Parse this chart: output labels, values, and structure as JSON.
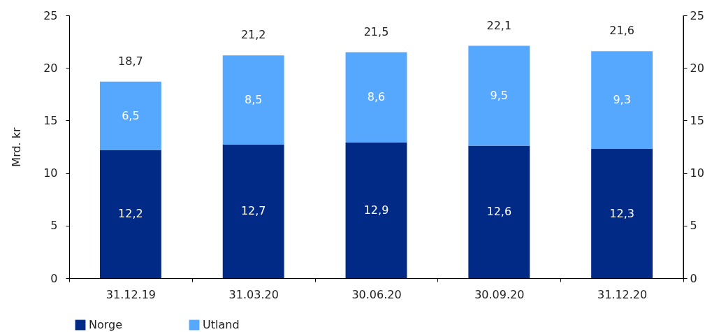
{
  "chart_data": {
    "type": "bar",
    "stacked": true,
    "ylabel": "Mrd. kr",
    "categories": [
      "31.12.19",
      "31.03.20",
      "30.06.20",
      "30.09.20",
      "31.12.20"
    ],
    "series": [
      {
        "name": "Norge",
        "color": "#002a85",
        "values": [
          12.2,
          12.7,
          12.9,
          12.6,
          12.3
        ],
        "value_labels": [
          "12,2",
          "12,7",
          "12,9",
          "12,6",
          "12,3"
        ]
      },
      {
        "name": "Utland",
        "color": "#56a8ff",
        "values": [
          6.5,
          8.5,
          8.6,
          9.5,
          9.3
        ],
        "value_labels": [
          "6,5",
          "8,5",
          "8,6",
          "9,5",
          "9,3"
        ]
      }
    ],
    "totals": [
      "18,7",
      "21,2",
      "21,5",
      "22,1",
      "21,6"
    ],
    "ylim": [
      0,
      25
    ],
    "yticks": [
      0,
      5,
      10,
      15,
      20,
      25
    ],
    "y2lim": [
      0,
      25
    ],
    "y2ticks": [
      0,
      5,
      10,
      15,
      20,
      25
    ],
    "grid": false,
    "legend": "bottom left"
  }
}
